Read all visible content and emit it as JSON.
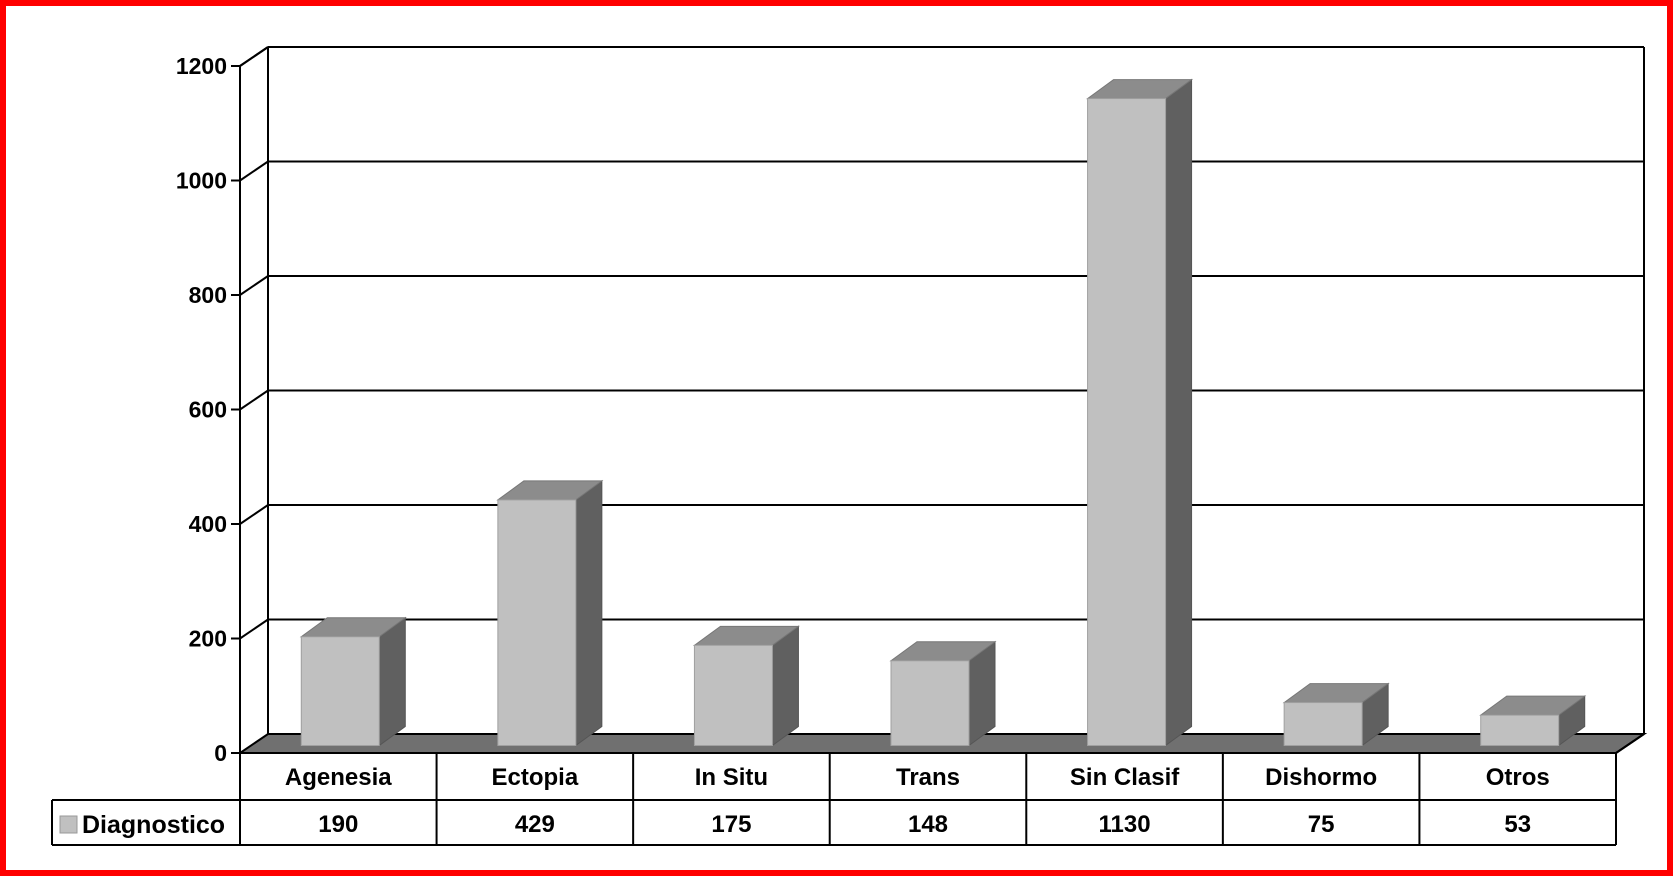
{
  "colors": {
    "frame": "#ff0000",
    "bar_front": "#c0c0c0",
    "bar_top": "#8c8c8c",
    "bar_side": "#606060",
    "floor": "#707070",
    "line": "#000000"
  },
  "chart_data": {
    "type": "bar",
    "style": "3d-column with data table",
    "categories": [
      "Agenesia",
      "Ectopia",
      "In Situ",
      "Trans",
      "Sin Clasif",
      "Dishormo",
      "Otros"
    ],
    "series": [
      {
        "name": "Diagnostico",
        "values": [
          190,
          429,
          175,
          148,
          1130,
          75,
          53
        ]
      }
    ],
    "table_values": [
      "190",
      "429",
      "175",
      "148",
      "1130",
      "75",
      "53"
    ],
    "ylim": [
      0,
      1200
    ],
    "yticks": [
      0,
      200,
      400,
      600,
      800,
      1000,
      1200
    ],
    "grid": true,
    "legend": "data-table-row"
  }
}
